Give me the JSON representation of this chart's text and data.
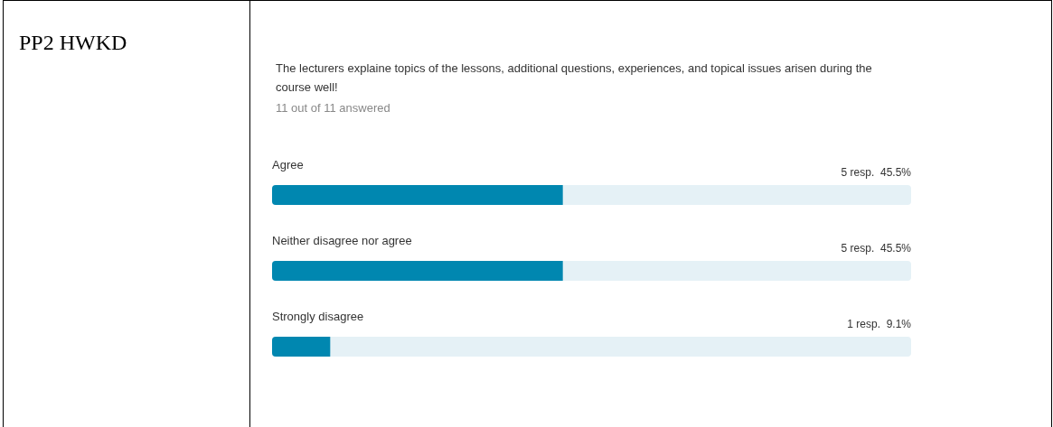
{
  "chart_data": {
    "type": "bar",
    "orientation": "horizontal",
    "title": "The lecturers explaine topics of the lessons, additional questions, experiences, and topical issues arisen during the course well!",
    "subtitle": "11 out of 11 answered",
    "annotations": [
      "PP2 HWKD"
    ],
    "categories": [
      "Agree",
      "Neither disagree nor agree",
      "Strongly disagree"
    ],
    "values": [
      45.5,
      45.5,
      9.1
    ],
    "value_labels": [
      "5 resp.  45.5%",
      "5 resp.  45.5%",
      "1 resp.  9.1%"
    ],
    "color": "#0087b0",
    "xlim": [
      0,
      100
    ],
    "tick_labels": "y",
    "grid": false
  }
}
